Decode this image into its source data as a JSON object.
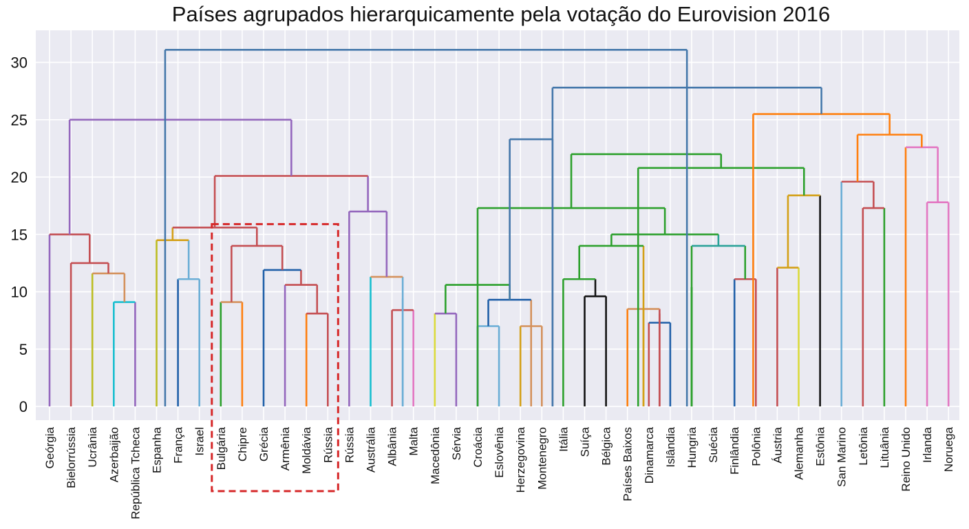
{
  "chart_data": {
    "type": "dendrogram",
    "title": "Países agrupados hierarquicamente pela votação do Eurovision 2016",
    "ylim": [
      -1.2,
      32.8
    ],
    "y_ticks": [
      0,
      5,
      10,
      15,
      20,
      25,
      30
    ],
    "grid": true,
    "leaves": [
      "Geórgia",
      "Bielorrússia",
      "Ucrânia",
      "Azerbaijão",
      "República Tcheca",
      "Espanha",
      "França",
      "Israel",
      "Bulgária",
      "Chipre",
      "Grécia",
      "Armênia",
      "Moldávia",
      "Rússia",
      "Rússia",
      "Austrália",
      "Albânia",
      "Malta",
      "Macedônia",
      "Sérvia",
      "Croácia",
      "Eslovênia",
      "Herzegovina",
      "Montenegro",
      "Itália",
      "Suíça",
      "Bélgica",
      "Países Baixos",
      "Dinamarca",
      "Islândia",
      "Hungria",
      "Suécia",
      "Finlândia",
      "Polônia",
      "Áustria",
      "Alemanha",
      "Estônia",
      "San Marino",
      "Letônia",
      "Lituânia",
      "Reino Unido",
      "Irlanda",
      "Noruega"
    ],
    "highlight": {
      "from_leaf": 8,
      "to_leaf": 13,
      "top": 15.9,
      "color": "#d62728"
    },
    "links": [
      {
        "l": 3,
        "r": 4,
        "h": 9.1,
        "lc": "#17becf",
        "rc": "#9467bd",
        "tc": "#17becf"
      },
      {
        "l": 2,
        "r": 3.5,
        "h": 11.6,
        "lc": "#bcbd22",
        "rc": "#d4915c",
        "tc": "#d4915c"
      },
      {
        "l": 1,
        "r": 2.75,
        "h": 12.5,
        "lc": "#c44e52",
        "rc": "#c44e52",
        "tc": "#c44e52"
      },
      {
        "l": 0,
        "r": 1.875,
        "h": 15,
        "lc": "#9467bd",
        "rc": "#c44e52",
        "tc": "#c44e52"
      },
      {
        "l": 6,
        "r": 7,
        "h": 11.1,
        "lc": "#1f5fa8",
        "rc": "#6baed6",
        "tc": "#6baed6"
      },
      {
        "l": 5,
        "r": 6.5,
        "h": 14.5,
        "lc": "#bcbd22",
        "rc": "#6baed6",
        "tc": "#d4a017"
      },
      {
        "l": 8,
        "r": 9,
        "h": 9.1,
        "lc": "#2ca02c",
        "rc": "#ff7f0e",
        "tc": "#d4915c"
      },
      {
        "l": 12,
        "r": 13,
        "h": 8.1,
        "lc": "#ff7f0e",
        "rc": "#c44e52",
        "tc": "#c44e52"
      },
      {
        "l": 11,
        "r": 12.5,
        "h": 10.6,
        "lc": "#9467bd",
        "rc": "#c44e52",
        "tc": "#c44e52"
      },
      {
        "l": 10,
        "r": 11.75,
        "h": 11.9,
        "lc": "#1f5fa8",
        "rc": "#c44e52",
        "tc": "#1f5fa8"
      },
      {
        "l": 8.5,
        "r": 10.875,
        "h": 14,
        "lc": "#c44e52",
        "rc": "#c44e52",
        "tc": "#c44e52"
      },
      {
        "l": 5.75,
        "r": 9.6875,
        "h": 15.6,
        "lc": "#d4a017",
        "rc": "#c44e52",
        "tc": "#c44e52"
      },
      {
        "l": 16,
        "r": 17,
        "h": 8.4,
        "lc": "#c44e52",
        "rc": "#e377c2",
        "tc": "#c44e52"
      },
      {
        "l": 16.5,
        "r": 16.5,
        "h": 9.4,
        "lc": "#6baed6",
        "rc": "#6baed6",
        "tc": "#6baed6"
      },
      {
        "l": 15,
        "r": 16.5,
        "h": 11.3,
        "lc": "#17becf",
        "rc": "#6baed6",
        "tc": "#d4915c"
      },
      {
        "l": 14,
        "r": 15.75,
        "h": 17,
        "lc": "#9467bd",
        "rc": "#9467bd",
        "tc": "#9467bd"
      },
      {
        "l": 7.71875,
        "r": 14.875,
        "h": 20.1,
        "lc": "#c44e52",
        "rc": "#9467bd",
        "tc": "#c44e52"
      },
      {
        "l": 0.9375,
        "r": 11.296875,
        "h": 25,
        "lc": "#9467bd",
        "rc": "#9467bd",
        "tc": "#9467bd"
      },
      {
        "l": 18,
        "r": 19,
        "h": 8.1,
        "lc": "#dbdb3c",
        "rc": "#9467bd",
        "tc": "#9467bd"
      },
      {
        "l": 20,
        "r": 21,
        "h": 7,
        "lc": "#1f5fa8",
        "rc": "#6baed6",
        "tc": "#6baed6"
      },
      {
        "l": 22,
        "r": 23,
        "h": 7,
        "lc": "#d4a017",
        "rc": "#d4915c",
        "tc": "#d4915c"
      },
      {
        "l": 20.5,
        "r": 22.5,
        "h": 9.3,
        "lc": "#1f5fa8",
        "rc": "#d4915c",
        "tc": "#1f5fa8"
      },
      {
        "l": 18.5,
        "r": 21.5,
        "h": 10.6,
        "lc": "#2ca02c",
        "rc": "#2ca02c",
        "tc": "#2ca02c"
      },
      {
        "l": 25,
        "r": 26,
        "h": 9.6,
        "lc": "#111111",
        "rc": "#111111",
        "tc": "#111111"
      },
      {
        "l": 24,
        "r": 25.5,
        "h": 11.1,
        "lc": "#2ca02c",
        "rc": "#111111",
        "tc": "#2ca02c"
      },
      {
        "l": 28,
        "r": 29,
        "h": 7.3,
        "lc": "#c44e52",
        "rc": "#1f5fa8",
        "tc": "#1f5fa8"
      },
      {
        "l": 28.5,
        "r": 28.5,
        "h": 8.1,
        "lc": "#c44e52",
        "rc": "#c44e52",
        "tc": "#c44e52"
      },
      {
        "l": 27,
        "r": 28.5,
        "h": 8.5,
        "lc": "#ff7f0e",
        "rc": "#c44e52",
        "tc": "#d4915c"
      },
      {
        "l": 27.75,
        "r": 27.75,
        "h": 8.5,
        "lc": "#d4a017",
        "rc": "#d4a017",
        "tc": "#d4a017"
      },
      {
        "l": 32,
        "r": 33,
        "h": 11.1,
        "lc": "#1f5fa8",
        "rc": "#c44e52",
        "tc": "#c44e52"
      },
      {
        "l": 30,
        "r": 32.5,
        "h": 14,
        "lc": "#2ca02c",
        "rc": "#2ca02c",
        "tc": "#2aa198"
      },
      {
        "l": 30,
        "r": 30,
        "h": 10.4,
        "lc": "#2ca02c",
        "rc": "#2ca02c",
        "tc": "#2ca02c"
      },
      {
        "l": 24.75,
        "r": 27.75,
        "h": 14,
        "lc": "#2ca02c",
        "rc": "#d4a017",
        "tc": "#2ca02c"
      },
      {
        "l": 26.25,
        "r": 31.25,
        "h": 15,
        "lc": "#2ca02c",
        "rc": "#2aa198",
        "tc": "#2ca02c"
      },
      {
        "l": 20,
        "r": 28.75,
        "h": 17.3,
        "lc": "#2ca02c",
        "rc": "#2ca02c",
        "tc": "#2ca02c"
      },
      {
        "l": 34,
        "r": 35,
        "h": 12.1,
        "lc": "#c44e52",
        "rc": "#dbdb3c",
        "tc": "#d4a017"
      },
      {
        "l": 34.5,
        "r": 36,
        "h": 18.4,
        "lc": "#d4a017",
        "rc": "#111111",
        "tc": "#d4a017"
      },
      {
        "l": 27.5,
        "r": 35.25,
        "h": 20.8,
        "lc": "#2ca02c",
        "rc": "#2ca02c",
        "tc": "#2ca02c"
      },
      {
        "l": 24.375,
        "r": 31.375,
        "h": 22,
        "lc": "#2ca02c",
        "rc": "#2ca02c",
        "tc": "#2ca02c"
      },
      {
        "l": 38,
        "r": 39,
        "h": 17.3,
        "lc": "#c44e52",
        "rc": "#2ca02c",
        "tc": "#c44e52"
      },
      {
        "l": 37,
        "r": 38.5,
        "h": 19.6,
        "lc": "#6baed6",
        "rc": "#c44e52",
        "tc": "#c44e52"
      },
      {
        "l": 41,
        "r": 42,
        "h": 17.8,
        "lc": "#e377c2",
        "rc": "#e377c2",
        "tc": "#e377c2"
      },
      {
        "l": 40,
        "r": 41.5,
        "h": 22.6,
        "lc": "#ff7f0e",
        "rc": "#e377c2",
        "tc": "#e377c2"
      },
      {
        "l": 37.75,
        "r": 40.75,
        "h": 23.7,
        "lc": "#ff7f0e",
        "rc": "#ff7f0e",
        "tc": "#ff7f0e"
      },
      {
        "l": 32.875,
        "r": 39.25,
        "h": 25.5,
        "lc": "#ff7f0e",
        "rc": "#ff7f0e",
        "tc": "#ff7f0e"
      },
      {
        "l": 21.5,
        "r": 23.5,
        "h": 23.3,
        "lc": "#4477aa",
        "rc": "#4477aa",
        "tc": "#4477aa"
      },
      {
        "l": 23.5,
        "r": 36.0625,
        "h": 27.8,
        "lc": "#4477aa",
        "rc": "#4477aa",
        "tc": "#4477aa"
      },
      {
        "l": 5.4,
        "r": 29.78,
        "h": 31.1,
        "lc": "#4477aa",
        "rc": "#4477aa",
        "tc": "#4477aa"
      }
    ]
  }
}
